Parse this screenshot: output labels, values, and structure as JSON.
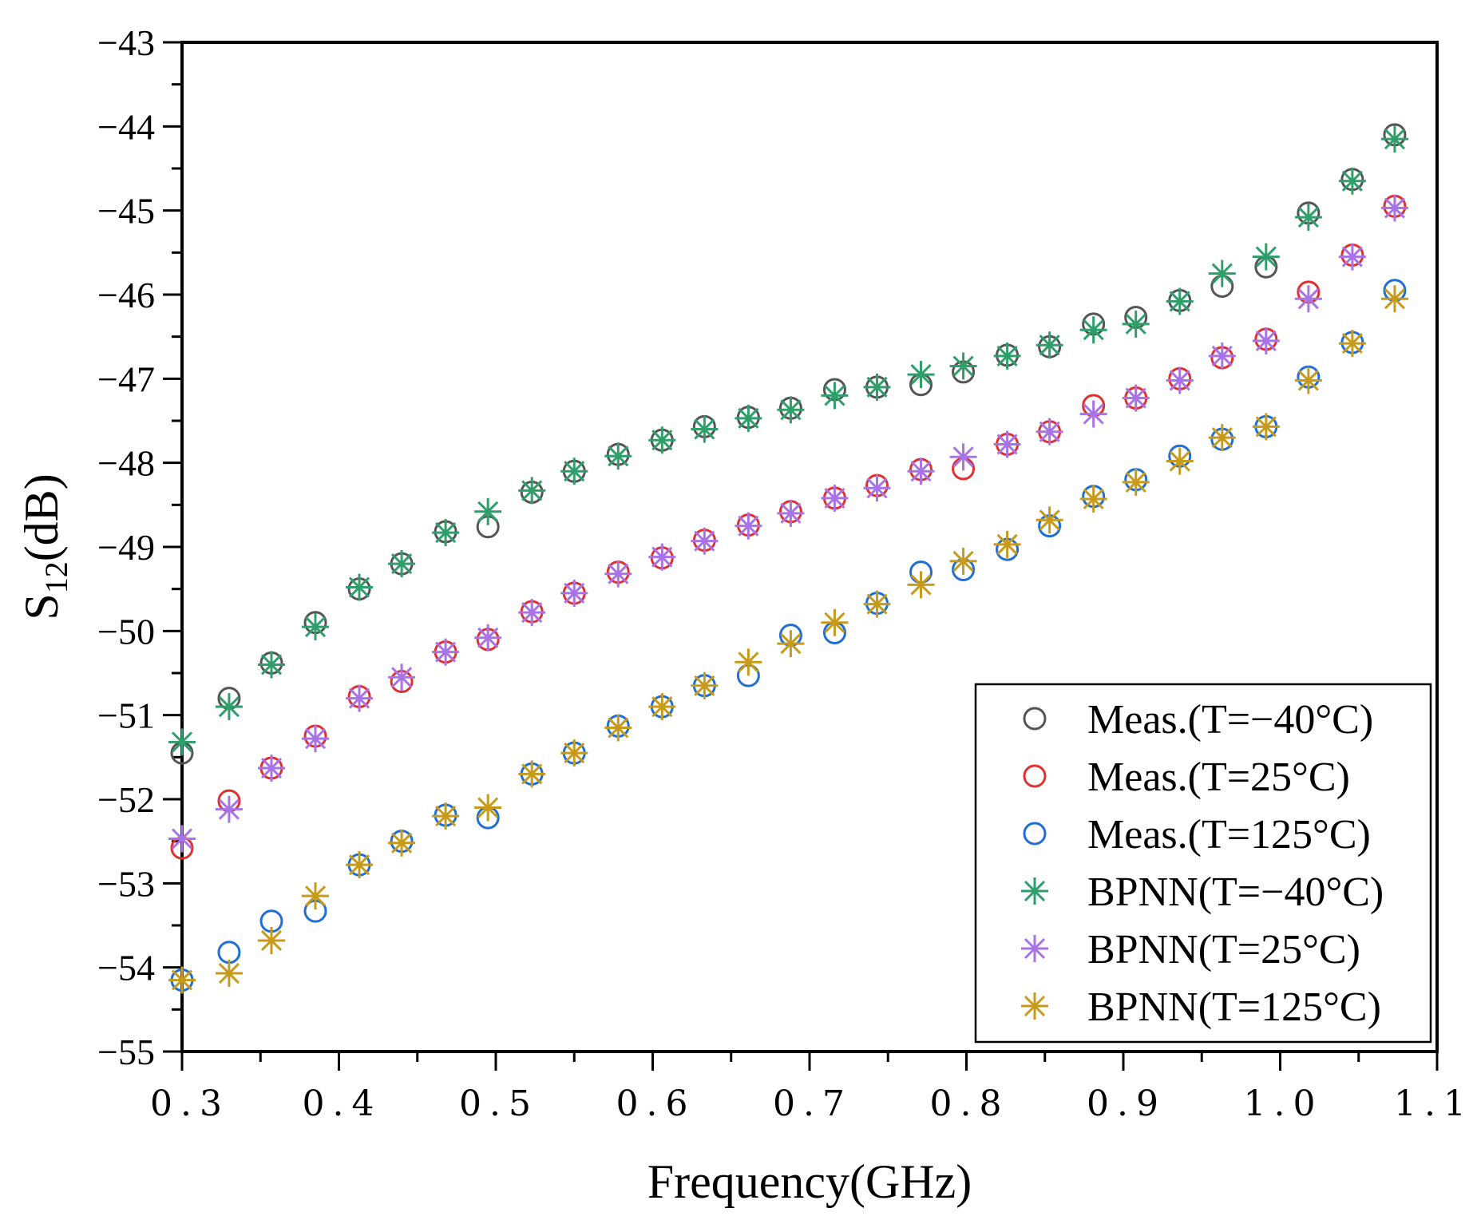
{
  "chart_data": {
    "type": "scatter",
    "title": "",
    "xlabel": "Frequency(GHz)",
    "ylabel_main": "S",
    "ylabel_sub": "12",
    "ylabel_unit": "(dB)",
    "xlim": [
      0.3,
      1.1
    ],
    "ylim": [
      -55,
      -43
    ],
    "xticks": [
      0.3,
      0.4,
      0.5,
      0.6,
      0.7,
      0.8,
      0.9,
      1.0,
      1.1
    ],
    "xtick_labels": [
      "0.3",
      "0.4",
      "0.5",
      "0.6",
      "0.7",
      "0.8",
      "0.9",
      "1.0",
      "1.1"
    ],
    "yticks": [
      -43,
      -44,
      -45,
      -46,
      -47,
      -48,
      -49,
      -50,
      -51,
      -52,
      -53,
      -54,
      -55
    ],
    "ytick_labels": [
      "−43",
      "−44",
      "−45",
      "−46",
      "−47",
      "−48",
      "−49",
      "−50",
      "−51",
      "−52",
      "−53",
      "−54",
      "−55"
    ],
    "legend_position": "lower-right",
    "x": [
      0.3,
      0.33,
      0.357,
      0.385,
      0.413,
      0.44,
      0.468,
      0.495,
      0.523,
      0.55,
      0.578,
      0.606,
      0.633,
      0.661,
      0.688,
      0.716,
      0.743,
      0.771,
      0.798,
      0.826,
      0.853,
      0.881,
      0.908,
      0.936,
      0.963,
      0.991,
      1.018,
      1.046,
      1.073
    ],
    "series": [
      {
        "name": "Meas.(T=−40°C)",
        "marker": "circle",
        "color": "#555555",
        "values": [
          -51.45,
          -50.8,
          -50.38,
          -49.9,
          -49.5,
          -49.2,
          -48.82,
          -48.76,
          -48.35,
          -48.1,
          -47.9,
          -47.73,
          -47.57,
          -47.46,
          -47.35,
          -47.13,
          -47.1,
          -47.07,
          -46.92,
          -46.72,
          -46.62,
          -46.35,
          -46.27,
          -46.07,
          -45.9,
          -45.67,
          -45.03,
          -44.63,
          -44.1
        ]
      },
      {
        "name": "Meas.(T=25°C)",
        "marker": "circle",
        "color": "#e03030",
        "values": [
          -52.58,
          -52.02,
          -51.63,
          -51.25,
          -50.78,
          -50.6,
          -50.25,
          -50.1,
          -49.77,
          -49.55,
          -49.3,
          -49.13,
          -48.92,
          -48.74,
          -48.58,
          -48.42,
          -48.27,
          -48.08,
          -48.07,
          -47.78,
          -47.63,
          -47.32,
          -47.23,
          -47.0,
          -46.75,
          -46.53,
          -45.97,
          -45.53,
          -44.95
        ]
      },
      {
        "name": "Meas.(T=125°C)",
        "marker": "circle",
        "color": "#1f6fd6",
        "values": [
          -54.15,
          -53.82,
          -53.45,
          -53.33,
          -52.78,
          -52.5,
          -52.19,
          -52.22,
          -51.7,
          -51.45,
          -51.13,
          -50.9,
          -50.65,
          -50.53,
          -50.05,
          -50.02,
          -49.67,
          -49.3,
          -49.27,
          -49.03,
          -48.75,
          -48.4,
          -48.2,
          -47.92,
          -47.72,
          -47.57,
          -46.98,
          -46.57,
          -45.95
        ]
      },
      {
        "name": "BPNN(T=−40°C)",
        "marker": "asterisk",
        "color": "#2e9e6a",
        "values": [
          -51.32,
          -50.9,
          -50.4,
          -49.95,
          -49.48,
          -49.2,
          -48.83,
          -48.58,
          -48.33,
          -48.1,
          -47.92,
          -47.73,
          -47.6,
          -47.47,
          -47.37,
          -47.2,
          -47.1,
          -46.95,
          -46.85,
          -46.73,
          -46.6,
          -46.42,
          -46.35,
          -46.08,
          -45.75,
          -45.55,
          -45.08,
          -44.65,
          -44.15
        ]
      },
      {
        "name": "BPNN(T=25°C)",
        "marker": "asterisk",
        "color": "#a873e8",
        "values": [
          -52.47,
          -52.12,
          -51.63,
          -51.28,
          -50.8,
          -50.55,
          -50.25,
          -50.08,
          -49.78,
          -49.55,
          -49.32,
          -49.12,
          -48.93,
          -48.75,
          -48.6,
          -48.42,
          -48.3,
          -48.1,
          -47.93,
          -47.78,
          -47.63,
          -47.42,
          -47.23,
          -47.02,
          -46.73,
          -46.55,
          -46.05,
          -45.55,
          -44.97
        ]
      },
      {
        "name": "BPNN(T=125°C)",
        "marker": "asterisk",
        "color": "#c89a1a",
        "values": [
          -54.15,
          -54.07,
          -53.68,
          -53.15,
          -52.78,
          -52.52,
          -52.2,
          -52.1,
          -51.7,
          -51.45,
          -51.15,
          -50.9,
          -50.65,
          -50.37,
          -50.15,
          -49.9,
          -49.68,
          -49.45,
          -49.17,
          -48.97,
          -48.68,
          -48.43,
          -48.23,
          -47.98,
          -47.7,
          -47.57,
          -47.02,
          -46.58,
          -46.05
        ]
      }
    ]
  }
}
